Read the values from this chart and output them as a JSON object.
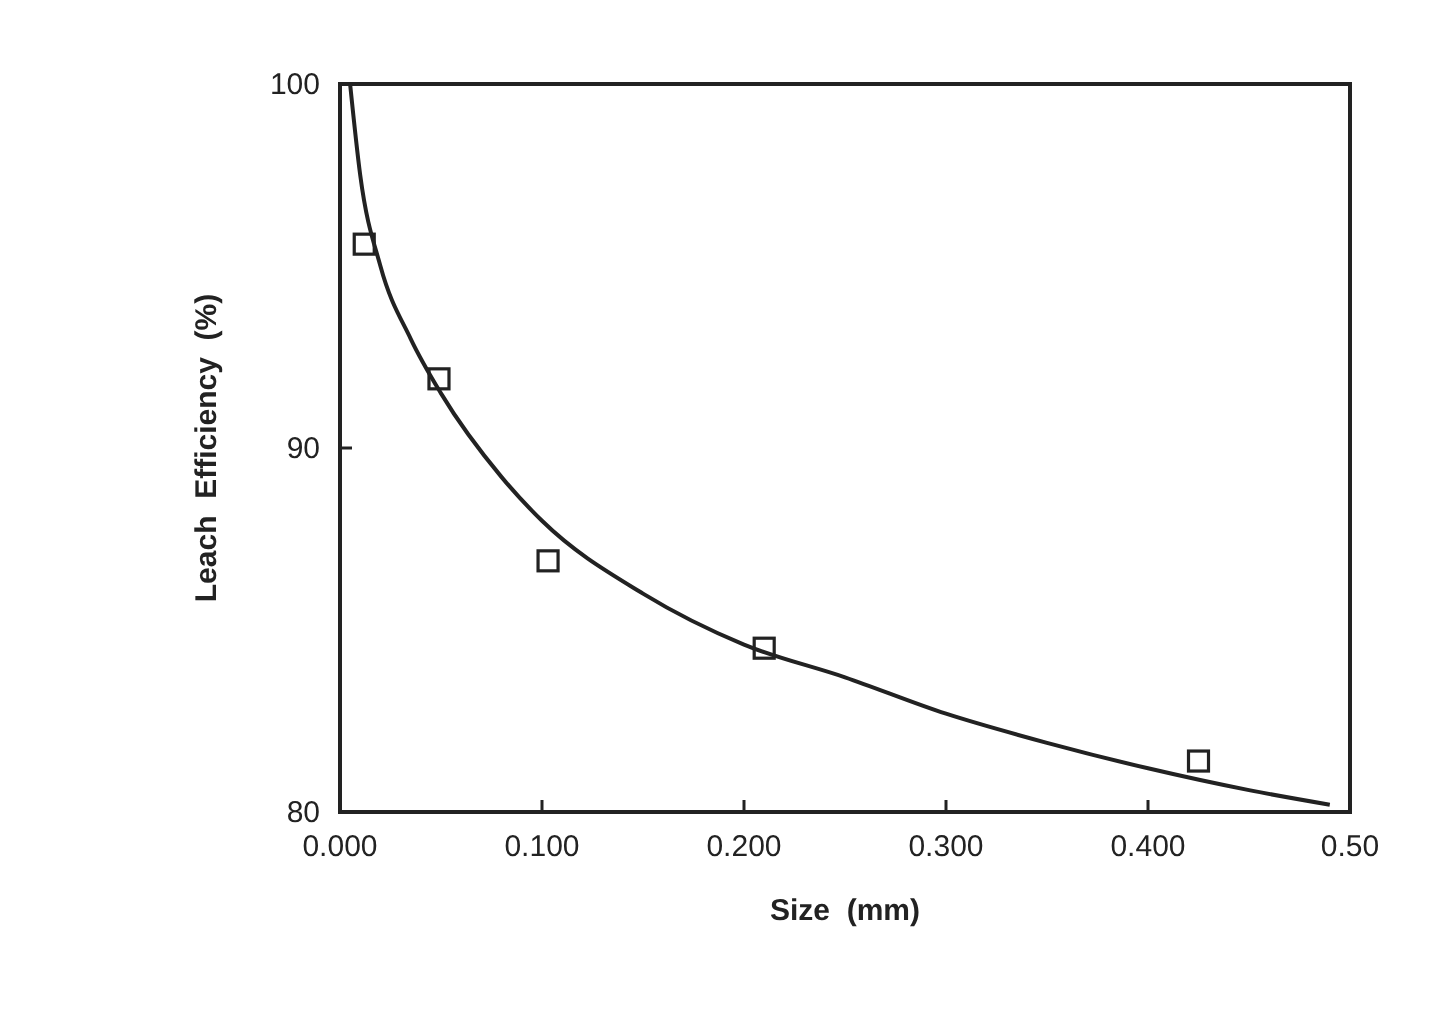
{
  "chart_data": {
    "type": "scatter",
    "xlabel": "Size  (mm)",
    "ylabel": "Leach  Efficiency  (%)",
    "xlim": [
      0,
      0.5
    ],
    "ylim": [
      80,
      100
    ],
    "xticks": [
      {
        "value": 0,
        "label": "0.000"
      },
      {
        "value": 0.1,
        "label": "0.100"
      },
      {
        "value": 0.2,
        "label": "0.200"
      },
      {
        "value": 0.3,
        "label": "0.300"
      },
      {
        "value": 0.4,
        "label": "0.400"
      },
      {
        "value": 0.5,
        "label": "0.50"
      }
    ],
    "yticks": [
      80,
      90,
      100
    ],
    "grid": false,
    "series": [
      {
        "color": "#222222",
        "marker": "square",
        "x": [
          0.012,
          0.049,
          0.103,
          0.21,
          0.425
        ],
        "values": [
          95.6,
          91.9,
          86.9,
          84.5,
          81.4
        ]
      },
      {
        "type": "line",
        "color": "#222222",
        "line_style": "solid",
        "x": [
          0.005,
          0.01,
          0.02,
          0.035,
          0.05,
          0.08,
          0.1,
          0.15,
          0.2,
          0.25,
          0.3,
          0.35,
          0.4,
          0.45,
          0.49
        ],
        "values": [
          100,
          97.5,
          95,
          93,
          91.5,
          89.2,
          88,
          86,
          84.6,
          83.7,
          82.7,
          81.9,
          81.2,
          80.6,
          80.2
        ]
      }
    ]
  }
}
